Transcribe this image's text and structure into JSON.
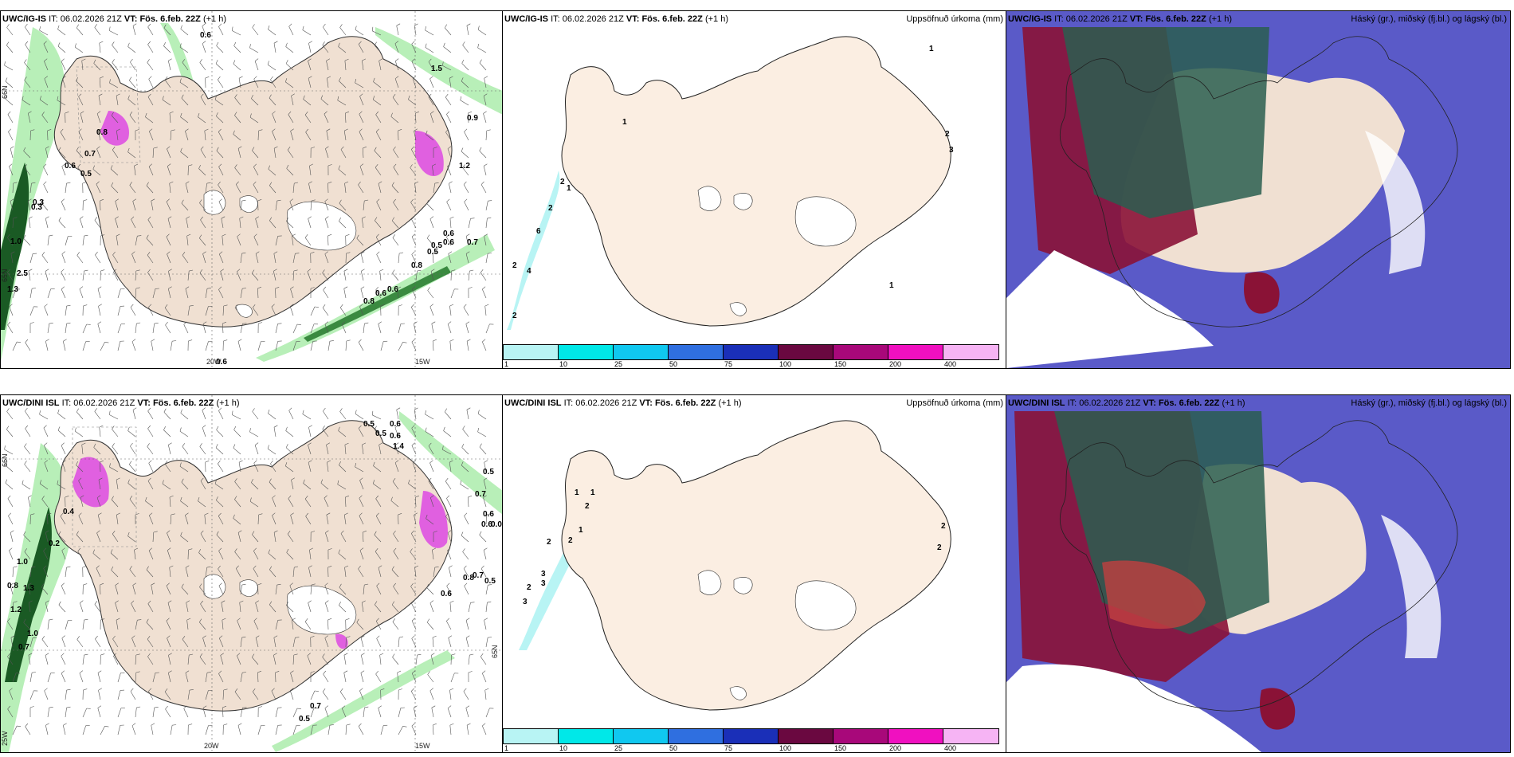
{
  "panels": [
    {
      "model": "UWC/IG-IS",
      "it_label": "IT:",
      "it": "06.02.2026 21Z",
      "vt_label": "VT:",
      "vt": "Fös. 6.feb. 22Z",
      "lead": "(+1 h)",
      "title": "",
      "labels": [
        "0.6",
        "1.5",
        "0.9",
        "0.8",
        "0.7",
        "0.6",
        "0.5",
        "0.3",
        "0.5",
        "0.6",
        "1.2",
        "0.6",
        "0.7",
        "0.6",
        "0.5",
        "0.8",
        "0.6",
        "0.8",
        "0.6",
        "0.3",
        "1.0",
        "2.5",
        "1.3"
      ],
      "axes": [
        "65N",
        "66N",
        "20W",
        "15W"
      ]
    },
    {
      "model": "UWC/IG-IS",
      "it_label": "IT:",
      "it": "06.02.2026 21Z",
      "vt_label": "VT:",
      "vt": "Fös. 6.feb. 22Z",
      "lead": "(+1 h)",
      "title": "Uppsöfnuð úrkoma (mm)",
      "labels": [
        "1",
        "1",
        "2",
        "2",
        "6",
        "2",
        "4",
        "2",
        "1",
        "2",
        "3",
        "1"
      ]
    },
    {
      "model": "UWC/IG-IS",
      "it_label": "IT:",
      "it": "06.02.2026 21Z",
      "vt_label": "VT:",
      "vt": "Fös. 6.feb. 22Z",
      "lead": "(+1 h)",
      "title": "Háský (gr.), miðský (fj.bl.) og lágský (bl.)"
    },
    {
      "model": "UWC/DINI ISL",
      "it_label": "IT:",
      "it": "06.02.2026 21Z",
      "vt_label": "VT:",
      "vt": "Fös. 6.feb. 22Z",
      "lead": "(+1 h)",
      "title": "",
      "labels": [
        "0.5",
        "0.6",
        "0.5",
        "0.6",
        "1.4",
        "0.5",
        "0.7",
        "0.6",
        "0.6",
        "0.0",
        "0.8",
        "0.7",
        "0.5",
        "0.6",
        "0.7",
        "0.5",
        "0.2",
        "1.0",
        "0.8",
        "1.3",
        "1.0",
        "0.7",
        "1.2",
        "0.4"
      ],
      "axes": [
        "66N",
        "65N",
        "25W",
        "20W",
        "15W"
      ]
    },
    {
      "model": "UWC/DINI ISL",
      "it_label": "IT:",
      "it": "06.02.2026 21Z",
      "vt_label": "VT:",
      "vt": "Fös. 6.feb. 22Z",
      "lead": "(+1 h)",
      "title": "Uppsöfnuð úrkoma (mm)",
      "labels": [
        "1",
        "1",
        "2",
        "1",
        "2",
        "2",
        "3",
        "3",
        "2",
        "3",
        "2",
        "2"
      ]
    },
    {
      "model": "UWC/DINI ISL",
      "it_label": "IT:",
      "it": "06.02.2026 21Z",
      "vt_label": "VT:",
      "vt": "Fös. 6.feb. 22Z",
      "lead": "(+1 h)",
      "title": "Háský (gr.), miðský (fj.bl.) og lágský (bl.)"
    }
  ],
  "colorbar": {
    "ticks": [
      "1",
      "10",
      "25",
      "50",
      "75",
      "100",
      "150",
      "200",
      "400"
    ],
    "colors": [
      "#b8f4f4",
      "#00e8e8",
      "#10c8f0",
      "#2f6fe0",
      "#1a2fb8",
      "#6a0840",
      "#a8087a",
      "#f010c0",
      "#f6b4f4"
    ]
  },
  "colors": {
    "land": "#f0e0d2",
    "land_light": "#fbeee2",
    "precip_light": "#b8efb8",
    "precip_dark": "#1a5a24",
    "magenta": "#e060e0",
    "cloud_high": "#2a5e50",
    "cloud_mid": "#8a1236",
    "cloud_low": "#5a5ac8"
  }
}
